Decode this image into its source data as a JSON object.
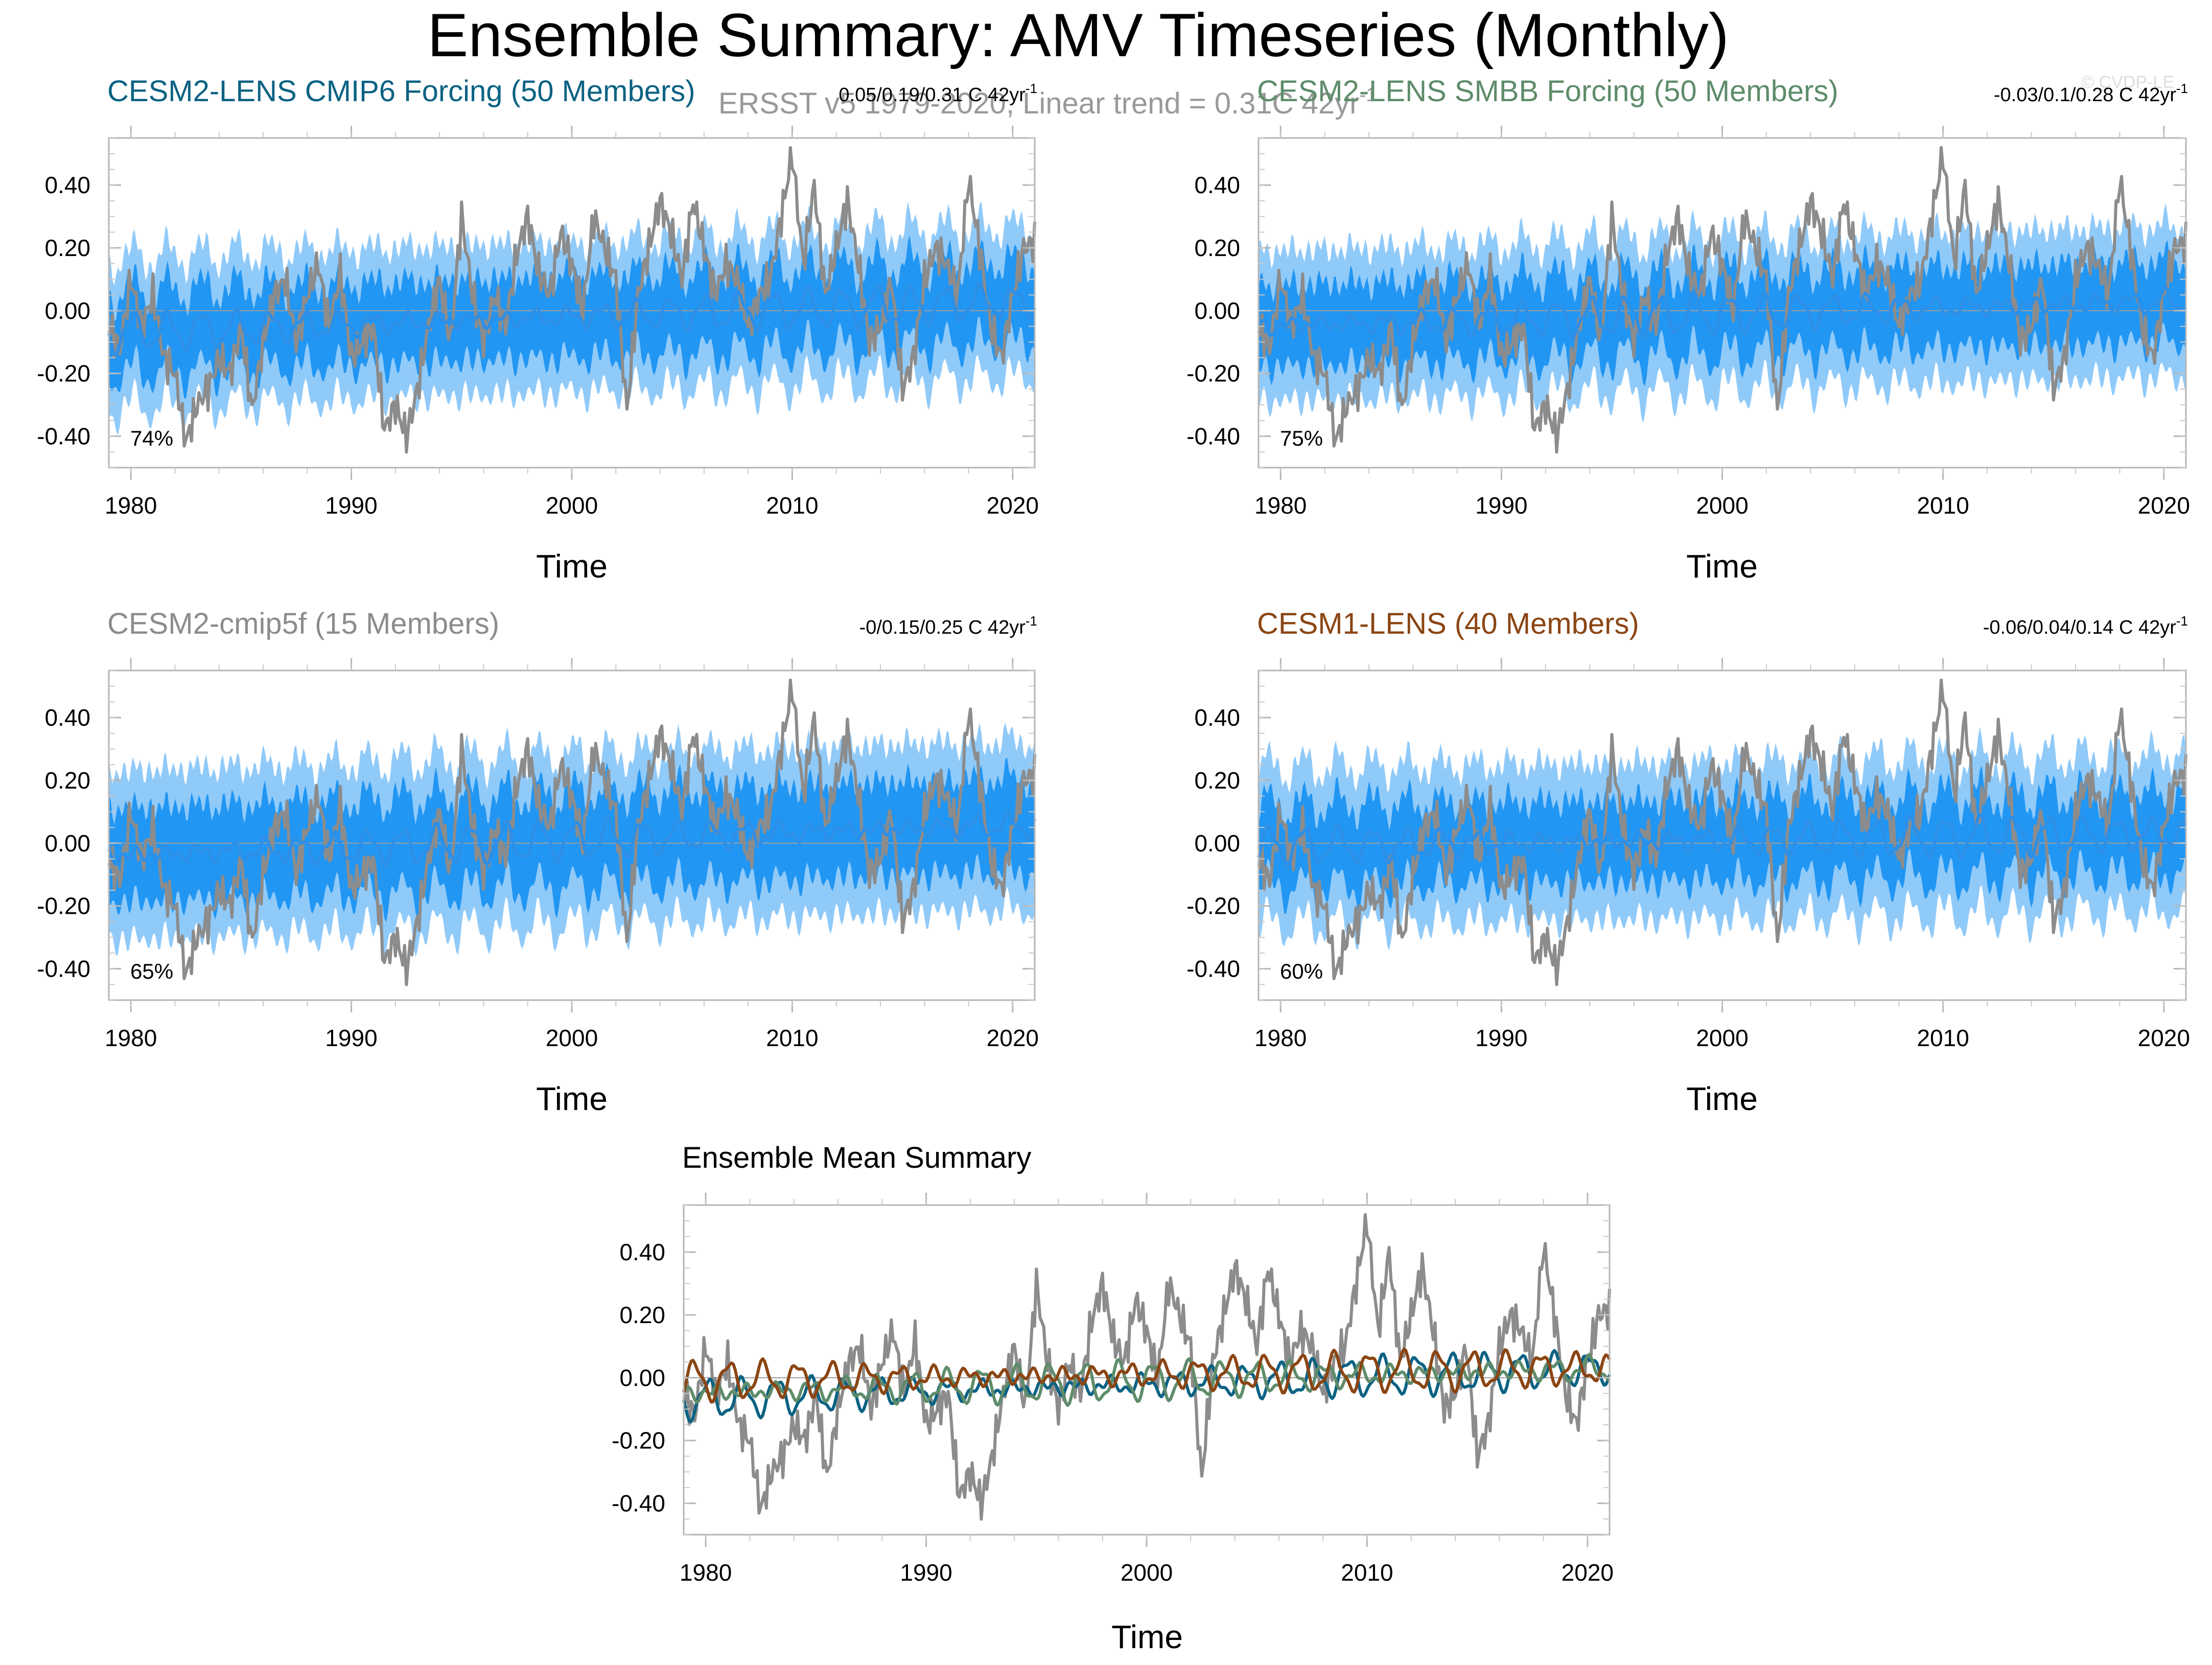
{
  "title": "Ensemble Summary: AMV Timeseries (Monthly)",
  "obs_label": "ERSST v5 1979-2020, Linear trend = 0.31C 42yr",
  "obs_label_sup": "-1",
  "watermark": "© CVDP-LE",
  "colors": {
    "obs": "#8c8c8c",
    "mean_line": "#2e8fe6",
    "band_inner": "#2196f3",
    "band_outer": "#90caf9",
    "cesm2_cmip6": "#0b6283",
    "cesm2_smbb": "#5e8c6a",
    "cesm2_cmip5f": "#8c8c8c",
    "cesm1": "#8b4513"
  },
  "chart_data": [
    {
      "type": "line",
      "panel": "CESM2-LENS CMIP6",
      "title": "CESM2-LENS CMIP6 Forcing (50 Members)",
      "title_color": "#0b6283",
      "trend_text": "0.05/0.19/0.31 C 42yr",
      "trend_sup": "-1",
      "percent": "74%",
      "xlabel": "Time",
      "ylabel": "",
      "xlim": [
        1979,
        2021
      ],
      "ylim": [
        -0.5,
        0.55
      ],
      "xticks": [
        "1980",
        "1990",
        "2000",
        "2010",
        "2020"
      ],
      "yticks": [
        "0.40",
        "0.20",
        "0.00",
        "-0.20",
        "-0.40"
      ],
      "mean_trend": [
        -0.07,
        0.03
      ],
      "mean_seed": 11,
      "inner_halfwidth": 0.13,
      "outer_halfwidth": 0.24
    },
    {
      "type": "line",
      "panel": "CESM2-LENS SMBB",
      "title": "CESM2-LENS SMBB Forcing (50 Members)",
      "title_color": "#5e8c6a",
      "trend_text": "-0.03/0.1/0.28 C 42yr",
      "trend_sup": "-1",
      "percent": "75%",
      "xlabel": "Time",
      "ylabel": "",
      "xlim": [
        1979,
        2021
      ],
      "ylim": [
        -0.5,
        0.55
      ],
      "xticks": [
        "1980",
        "1990",
        "2000",
        "2010",
        "2020"
      ],
      "yticks": [
        "0.40",
        "0.20",
        "0.00",
        "-0.20",
        "-0.40"
      ],
      "mean_trend": [
        -0.05,
        0.03
      ],
      "mean_seed": 23,
      "inner_halfwidth": 0.13,
      "outer_halfwidth": 0.24
    },
    {
      "type": "line",
      "panel": "CESM2-cmip5f",
      "title": "CESM2-cmip5f (15 Members)",
      "title_color": "#8c8c8c",
      "trend_text": "-0/0.15/0.25 C 42yr",
      "trend_sup": "-1",
      "percent": "65%",
      "xlabel": "Time",
      "ylabel": "",
      "xlim": [
        1979,
        2021
      ],
      "ylim": [
        -0.5,
        0.55
      ],
      "xticks": [
        "1980",
        "1990",
        "2000",
        "2010",
        "2020"
      ],
      "yticks": [
        "0.40",
        "0.20",
        "0.00",
        "-0.20",
        "-0.40"
      ],
      "mean_trend": [
        -0.04,
        0.06
      ],
      "mean_seed": 37,
      "inner_halfwidth": 0.15,
      "outer_halfwidth": 0.27
    },
    {
      "type": "line",
      "panel": "CESM1-LENS",
      "title": "CESM1-LENS (40 Members)",
      "title_color": "#8b4513",
      "trend_text": "-0.06/0.04/0.14 C 42yr",
      "trend_sup": "-1",
      "percent": "60%",
      "xlabel": "Time",
      "ylabel": "",
      "xlim": [
        1979,
        2021
      ],
      "ylim": [
        -0.5,
        0.55
      ],
      "xticks": [
        "1980",
        "1990",
        "2000",
        "2010",
        "2020"
      ],
      "yticks": [
        "0.40",
        "0.20",
        "0.00",
        "-0.20",
        "-0.40"
      ],
      "mean_trend": [
        -0.01,
        0.03
      ],
      "mean_seed": 53,
      "inner_halfwidth": 0.13,
      "outer_halfwidth": 0.25
    },
    {
      "type": "line",
      "panel": "Ensemble Mean Summary",
      "title": "Ensemble Mean Summary",
      "title_color": "#000000",
      "xlabel": "Time",
      "ylabel": "",
      "xlim": [
        1979,
        2021
      ],
      "ylim": [
        -0.5,
        0.55
      ],
      "xticks": [
        "1980",
        "1990",
        "2000",
        "2010",
        "2020"
      ],
      "yticks": [
        "0.40",
        "0.20",
        "0.00",
        "-0.20",
        "-0.40"
      ],
      "series": [
        {
          "name": "ERSST v5",
          "color": "#8c8c8c",
          "kind": "obs"
        },
        {
          "name": "CESM2-LENS CMIP6 Forcing",
          "color": "#0b6283",
          "trend": [
            -0.07,
            0.03
          ],
          "seed": 11
        },
        {
          "name": "CESM2-LENS SMBB Forcing",
          "color": "#5e8c6a",
          "trend": [
            -0.05,
            0.03
          ],
          "seed": 23
        },
        {
          "name": "CESM1-LENS",
          "color": "#8b4513",
          "trend": [
            -0.01,
            0.03
          ],
          "seed": 53
        }
      ]
    }
  ],
  "obs_series": {
    "name": "ERSST v5",
    "years": [
      1979.0,
      1979.5,
      1980.0,
      1980.5,
      1981.0,
      1981.5,
      1982.0,
      1982.5,
      1983.0,
      1983.5,
      1984.0,
      1984.5,
      1985.0,
      1985.5,
      1986.0,
      1986.5,
      1987.0,
      1987.5,
      1988.0,
      1988.5,
      1989.0,
      1989.5,
      1990.0,
      1990.5,
      1991.0,
      1991.5,
      1992.0,
      1992.5,
      1993.0,
      1993.5,
      1994.0,
      1994.5,
      1995.0,
      1995.5,
      1996.0,
      1996.5,
      1997.0,
      1997.5,
      1998.0,
      1998.5,
      1999.0,
      1999.5,
      2000.0,
      2000.5,
      2001.0,
      2001.5,
      2002.0,
      2002.5,
      2003.0,
      2003.5,
      2004.0,
      2004.5,
      2005.0,
      2005.5,
      2006.0,
      2006.5,
      2007.0,
      2007.5,
      2008.0,
      2008.5,
      2009.0,
      2009.5,
      2010.0,
      2010.5,
      2011.0,
      2011.5,
      2012.0,
      2012.5,
      2013.0,
      2013.5,
      2014.0,
      2014.5,
      2015.0,
      2015.5,
      2016.0,
      2016.5,
      2017.0,
      2017.5,
      2018.0,
      2018.5,
      2019.0,
      2019.5,
      2020.0,
      2020.5,
      2021.0
    ],
    "values": [
      -0.05,
      -0.12,
      0.1,
      -0.05,
      0.05,
      -0.15,
      -0.2,
      -0.42,
      -0.3,
      -0.25,
      -0.15,
      -0.2,
      -0.05,
      -0.32,
      -0.1,
      0.05,
      0.1,
      -0.1,
      0.05,
      0.15,
      -0.05,
      0.12,
      -0.15,
      -0.1,
      -0.05,
      -0.38,
      -0.3,
      -0.4,
      -0.25,
      -0.05,
      0.1,
      -0.1,
      0.3,
      0.05,
      -0.1,
      0.05,
      -0.05,
      0.18,
      0.3,
      0.12,
      0.05,
      0.25,
      0.15,
      0.0,
      0.3,
      0.2,
      0.1,
      -0.32,
      0.05,
      0.2,
      0.35,
      0.25,
      0.1,
      0.35,
      0.2,
      0.05,
      0.15,
      0.1,
      -0.05,
      0.05,
      0.1,
      0.3,
      0.5,
      0.15,
      0.4,
      0.05,
      0.2,
      0.35,
      0.15,
      -0.1,
      -0.05,
      0.1,
      -0.25,
      -0.15,
      0.1,
      0.2,
      0.15,
      0.05,
      0.42,
      0.2,
      -0.05,
      -0.15,
      0.05,
      0.2,
      0.22
    ]
  }
}
